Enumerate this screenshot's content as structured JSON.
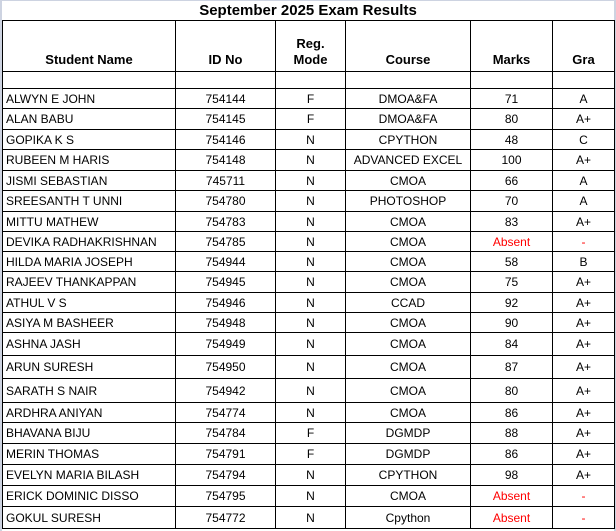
{
  "title": "September 2025 Exam Results",
  "columns": [
    "Student Name",
    "ID No",
    "Reg.\nMode",
    "Course",
    "Marks",
    "Gra"
  ],
  "rows": [
    {
      "name": "ALWYN E JOHN",
      "id": "754144",
      "mode": "F",
      "course": "DMOA&FA",
      "marks": "71",
      "grade": "A"
    },
    {
      "name": "ALAN BABU",
      "id": "754145",
      "mode": "F",
      "course": "DMOA&FA",
      "marks": "80",
      "grade": "A+"
    },
    {
      "name": "GOPIKA K S",
      "id": "754146",
      "mode": "N",
      "course": "CPYTHON",
      "marks": "48",
      "grade": "C"
    },
    {
      "name": "RUBEEN M HARIS",
      "id": "754148",
      "mode": "N",
      "course": "ADVANCED EXCEL",
      "marks": "100",
      "grade": "A+"
    },
    {
      "name": "JISMI SEBASTIAN",
      "id": "745711",
      "mode": "N",
      "course": "CMOA",
      "marks": "66",
      "grade": "A"
    },
    {
      "name": "SREESANTH T UNNI",
      "id": "754780",
      "mode": "N",
      "course": "PHOTOSHOP",
      "marks": "70",
      "grade": "A"
    },
    {
      "name": "MITTU MATHEW",
      "id": "754783",
      "mode": "N",
      "course": "CMOA",
      "marks": "83",
      "grade": "A+"
    },
    {
      "name": "DEVIKA RADHAKRISHNAN",
      "id": "754785",
      "mode": "N",
      "course": "CMOA",
      "marks": "Absent",
      "grade": "-"
    },
    {
      "name": "HILDA MARIA JOSEPH",
      "id": "754944",
      "mode": "N",
      "course": "CMOA",
      "marks": "58",
      "grade": "B"
    },
    {
      "name": "RAJEEV THANKAPPAN",
      "id": "754945",
      "mode": "N",
      "course": "CMOA",
      "marks": "75",
      "grade": "A+"
    },
    {
      "name": "ATHUL V S",
      "id": "754946",
      "mode": "N",
      "course": "CCAD",
      "marks": "92",
      "grade": "A+"
    },
    {
      "name": "ASIYA M BASHEER",
      "id": "754948",
      "mode": "N",
      "course": "CMOA",
      "marks": "90",
      "grade": "A+"
    },
    {
      "name": "ASHNA JASH",
      "id": "754949",
      "mode": "N",
      "course": "CMOA",
      "marks": "84",
      "grade": "A+"
    },
    {
      "name": "ARUN SURESH",
      "id": "754950",
      "mode": "N",
      "course": "CMOA",
      "marks": "87",
      "grade": "A+"
    },
    {
      "name": "SARATH S NAIR",
      "id": "754942",
      "mode": "N",
      "course": "CMOA",
      "marks": "80",
      "grade": "A+"
    },
    {
      "name": "ARDHRA ANIYAN",
      "id": "754774",
      "mode": "N",
      "course": "CMOA",
      "marks": "86",
      "grade": "A+"
    },
    {
      "name": "BHAVANA BIJU",
      "id": "754784",
      "mode": "F",
      "course": "DGMDP",
      "marks": "88",
      "grade": "A+"
    },
    {
      "name": "MERIN THOMAS",
      "id": "754791",
      "mode": "F",
      "course": "DGMDP",
      "marks": "86",
      "grade": "A+"
    },
    {
      "name": "EVELYN MARIA BILASH",
      "id": "754794",
      "mode": "N",
      "course": "CPYTHON",
      "marks": "98",
      "grade": "A+"
    },
    {
      "name": "ERICK DOMINIC DISSO",
      "id": "754795",
      "mode": "N",
      "course": "CMOA",
      "marks": "Absent",
      "grade": "-"
    },
    {
      "name": "GOKUL SURESH",
      "id": "754772",
      "mode": "N",
      "course": "Cpython",
      "marks": "Absent",
      "grade": "-"
    }
  ],
  "colors": {
    "absent_text": "#ff0000",
    "border": "#000000",
    "text": "#000000",
    "outer_gutter": "#cdd3e1"
  }
}
